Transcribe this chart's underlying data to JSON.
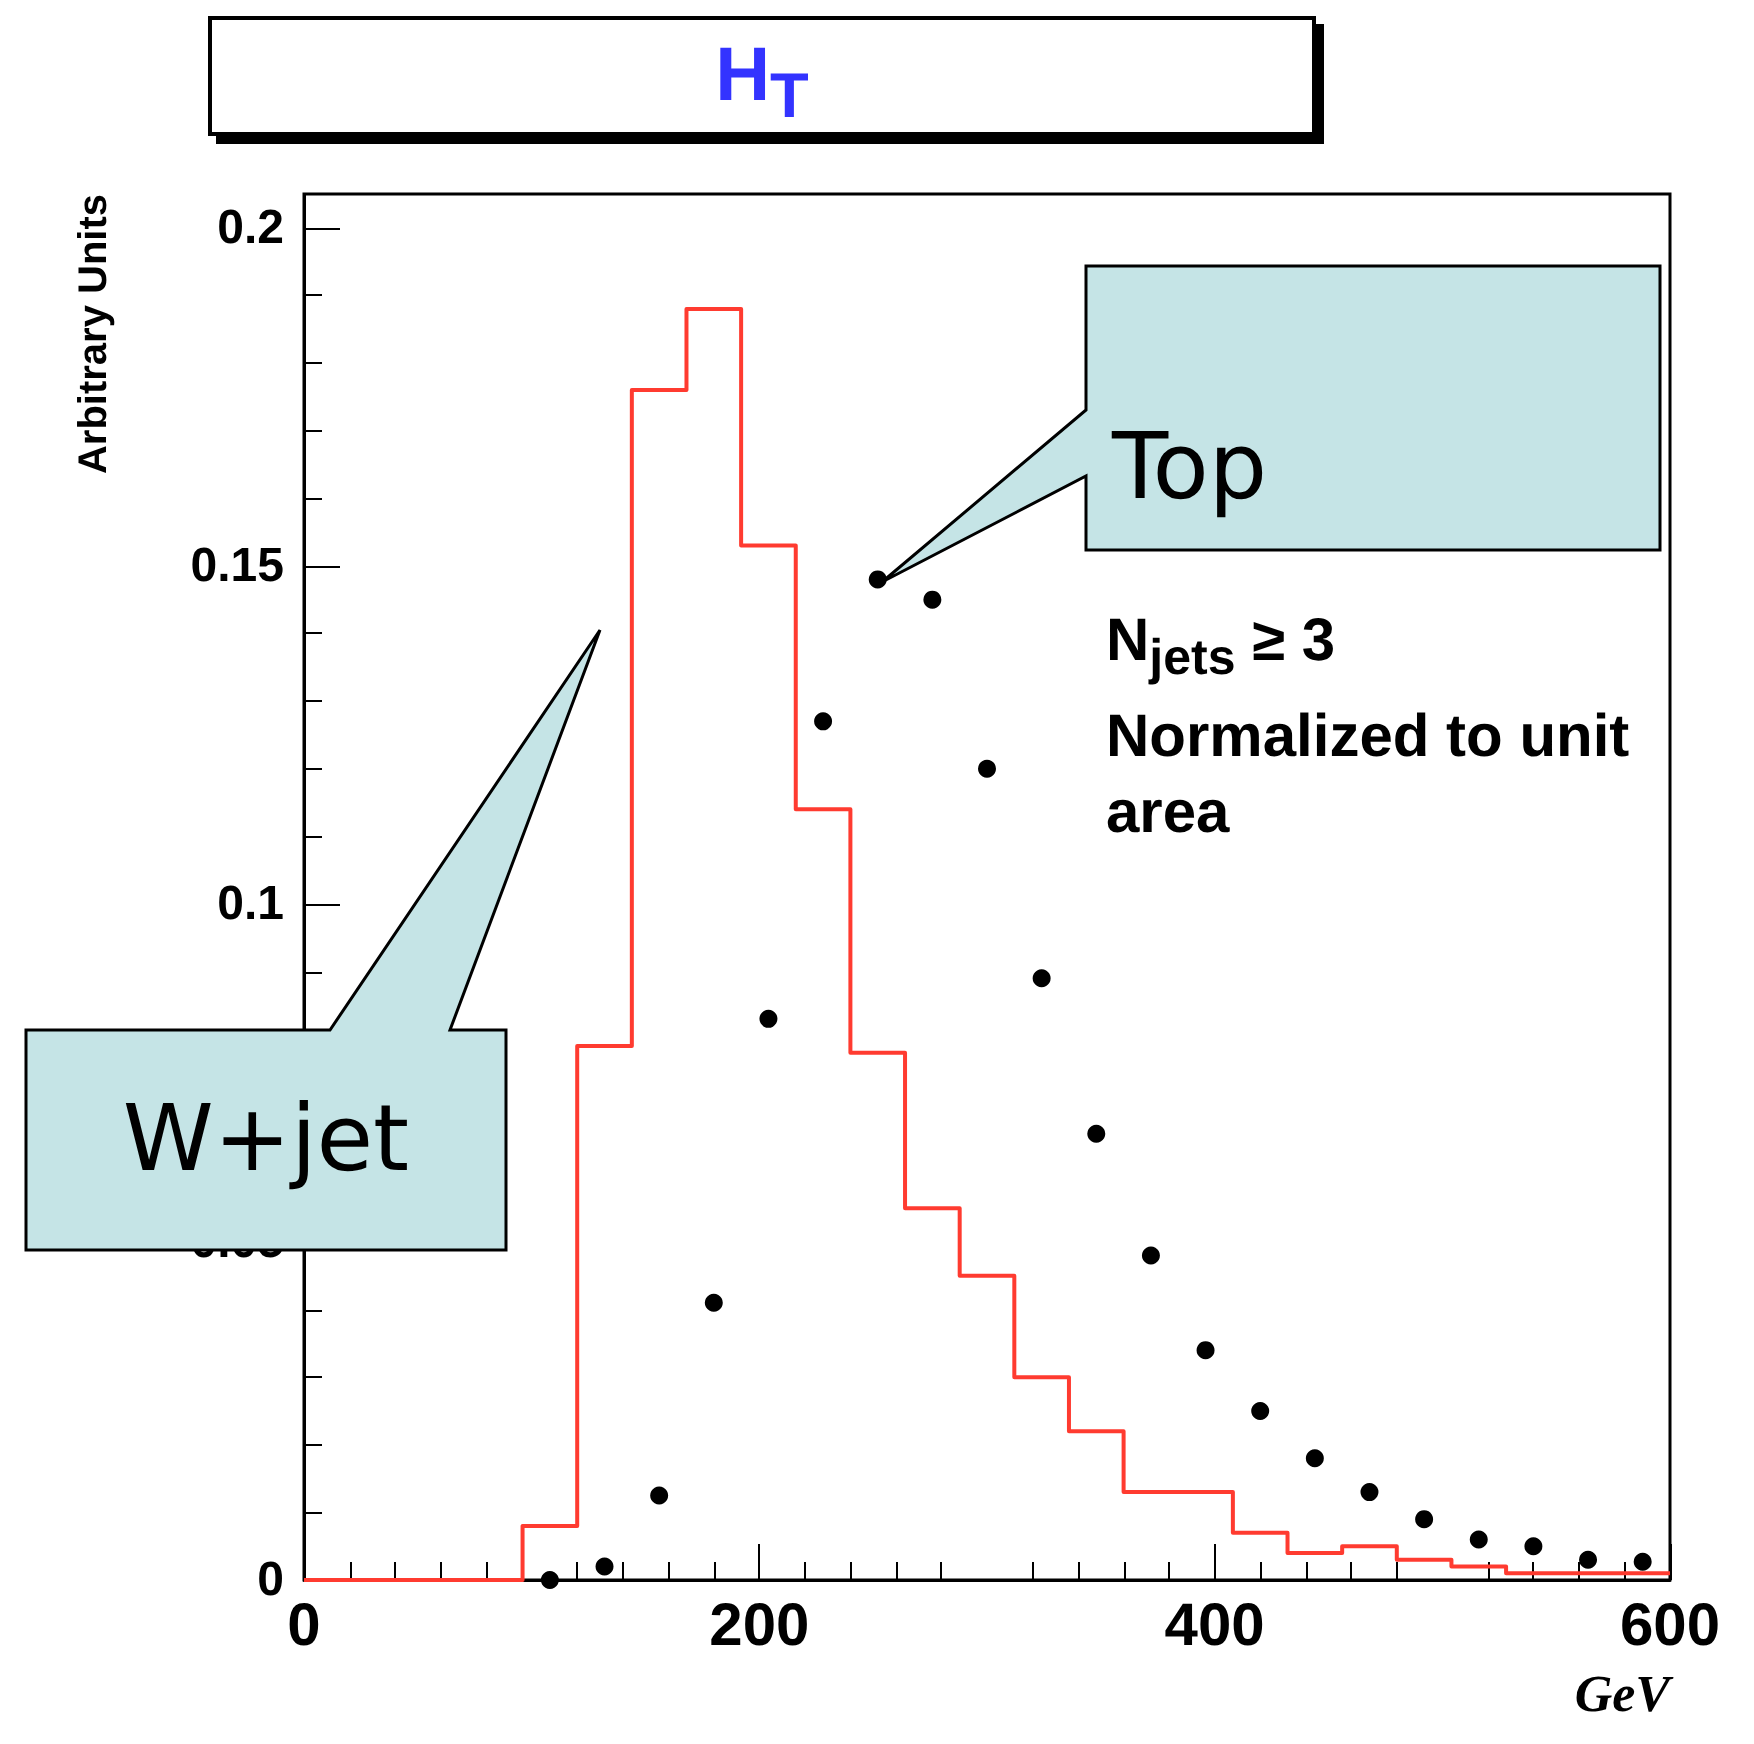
{
  "chart_data": {
    "type": "histogram",
    "title": "H$_{T}$",
    "xlabel": "GeV",
    "ylabel": "Arbitrary Units",
    "annotations": [
      "N$_{jets}$ ≥ 3",
      "Normalized to unit area"
    ],
    "xlim": [
      0,
      600
    ],
    "xticks": [
      0,
      200,
      400,
      600
    ],
    "ylim": [
      0,
      0.205
    ],
    "yticks": [
      0,
      0.05,
      0.1,
      0.15,
      0.2
    ],
    "grid": false,
    "legend": false,
    "marker": "circle",
    "series": [
      {
        "name": "W+jet",
        "type": "histogram",
        "color": "#ff3b30",
        "bins": [
          0,
          24,
          48,
          72,
          96,
          120,
          144,
          168,
          192,
          216,
          240,
          264,
          288,
          312,
          336,
          360,
          384,
          408,
          432,
          456,
          480,
          504,
          528,
          552,
          576,
          600
        ],
        "values": [
          0,
          0,
          0,
          0,
          0.008,
          0.079,
          0.176,
          0.188,
          0.153,
          0.114,
          0.078,
          0.055,
          0.045,
          0.03,
          0.022,
          0.013,
          0.013,
          0.007,
          0.004,
          0.005,
          0.003,
          0.002,
          0.001,
          0.001,
          0.001
        ]
      },
      {
        "name": "Top",
        "type": "scatter",
        "color": "#000000",
        "x": [
          108,
          132,
          156,
          180,
          204,
          228,
          252,
          276,
          300,
          324,
          348,
          372,
          396,
          420,
          444,
          468,
          492,
          516,
          540,
          564,
          588
        ],
        "values": [
          0,
          0.002,
          0.0125,
          0.041,
          0.083,
          0.127,
          0.148,
          0.145,
          0.12,
          0.089,
          0.066,
          0.048,
          0.034,
          0.025,
          0.018,
          0.013,
          0.009,
          0.006,
          0.005,
          0.003,
          0.0027
        ]
      }
    ]
  }
}
